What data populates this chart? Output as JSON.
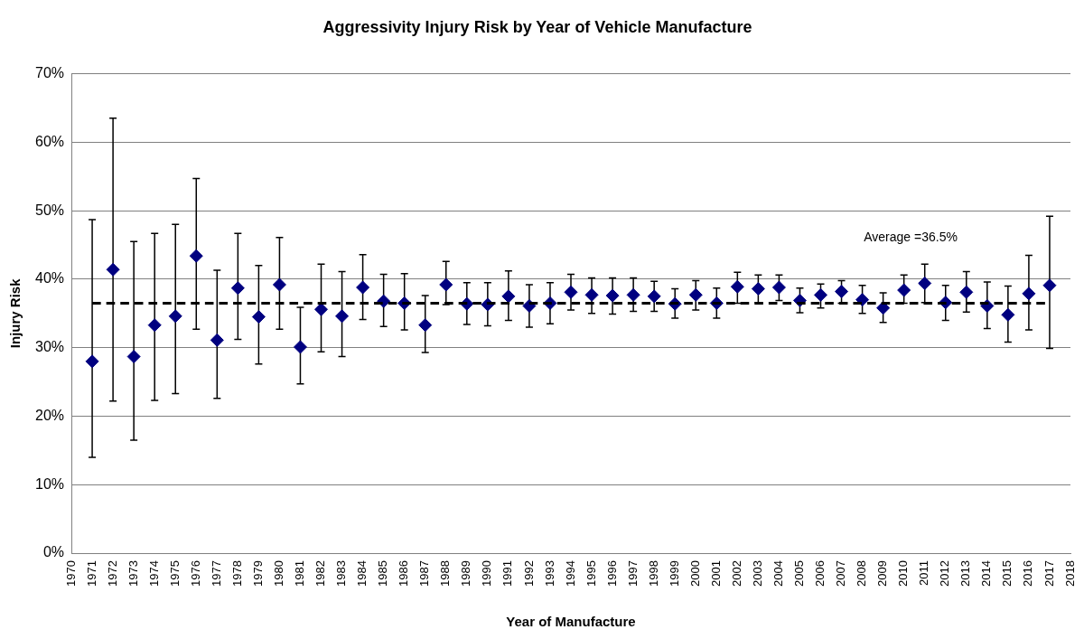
{
  "chart_data": {
    "type": "scatter",
    "title": "Aggressivity Injury Risk by Year of Vehicle Manufacture",
    "xlabel": "Year of Manufacture",
    "ylabel": "Injury Risk",
    "x": [
      1971,
      1972,
      1973,
      1974,
      1975,
      1976,
      1977,
      1978,
      1979,
      1980,
      1981,
      1982,
      1983,
      1984,
      1985,
      1986,
      1987,
      1988,
      1989,
      1990,
      1991,
      1992,
      1993,
      1994,
      1995,
      1996,
      1997,
      1998,
      1999,
      2000,
      2001,
      2002,
      2003,
      2004,
      2005,
      2006,
      2007,
      2008,
      2009,
      2010,
      2011,
      2012,
      2013,
      2014,
      2015,
      2016,
      2017
    ],
    "series": [
      {
        "color": "#000080",
        "values": [
          28.0,
          41.4,
          28.7,
          33.3,
          34.6,
          43.4,
          31.1,
          38.7,
          34.5,
          39.2,
          30.1,
          35.6,
          34.6,
          38.8,
          36.8,
          36.5,
          33.3,
          39.2,
          36.4,
          36.3,
          37.5,
          36.1,
          36.5,
          38.1,
          37.7,
          37.6,
          37.7,
          37.5,
          36.4,
          37.7,
          36.5,
          38.9,
          38.6,
          38.8,
          36.9,
          37.7,
          38.2,
          37.0,
          35.8,
          38.4,
          39.4,
          36.6,
          38.1,
          36.1,
          34.8,
          37.9,
          39.1
        ],
        "errors": [
          [
            14.0,
            48.7
          ],
          [
            22.2,
            63.5
          ],
          [
            16.5,
            45.5
          ],
          [
            22.3,
            46.7
          ],
          [
            23.3,
            48.0
          ],
          [
            32.7,
            54.7
          ],
          [
            22.6,
            41.3
          ],
          [
            31.2,
            46.7
          ],
          [
            27.6,
            42.0
          ],
          [
            32.7,
            46.1
          ],
          [
            24.7,
            35.9
          ],
          [
            29.4,
            42.2
          ],
          [
            28.7,
            41.1
          ],
          [
            34.1,
            43.6
          ],
          [
            33.1,
            40.7
          ],
          [
            32.6,
            40.8
          ],
          [
            29.3,
            37.6
          ],
          [
            36.3,
            42.6
          ],
          [
            33.4,
            39.5
          ],
          [
            33.2,
            39.5
          ],
          [
            34.0,
            41.2
          ],
          [
            33.0,
            39.2
          ],
          [
            33.5,
            39.5
          ],
          [
            35.5,
            40.7
          ],
          [
            35.0,
            40.2
          ],
          [
            34.9,
            40.2
          ],
          [
            35.3,
            40.2
          ],
          [
            35.3,
            39.7
          ],
          [
            34.3,
            38.6
          ],
          [
            35.5,
            39.8
          ],
          [
            34.3,
            38.7
          ],
          [
            36.5,
            41.0
          ],
          [
            36.6,
            40.6
          ],
          [
            36.9,
            40.6
          ],
          [
            35.1,
            38.7
          ],
          [
            35.8,
            39.3
          ],
          [
            36.5,
            39.8
          ],
          [
            35.0,
            39.1
          ],
          [
            33.7,
            38.0
          ],
          [
            36.5,
            40.6
          ],
          [
            36.6,
            42.2
          ],
          [
            34.0,
            39.1
          ],
          [
            35.2,
            41.1
          ],
          [
            32.8,
            39.6
          ],
          [
            30.8,
            39.0
          ],
          [
            32.6,
            43.5
          ],
          [
            29.9,
            49.2
          ]
        ]
      }
    ],
    "xlim": [
      1970,
      2018
    ],
    "xticks": [
      1970,
      1971,
      1972,
      1973,
      1974,
      1975,
      1976,
      1977,
      1978,
      1979,
      1980,
      1981,
      1982,
      1983,
      1984,
      1985,
      1986,
      1987,
      1988,
      1989,
      1990,
      1991,
      1992,
      1993,
      1994,
      1995,
      1996,
      1997,
      1998,
      1999,
      2000,
      2001,
      2002,
      2003,
      2004,
      2005,
      2006,
      2007,
      2008,
      2009,
      2010,
      2011,
      2012,
      2013,
      2014,
      2015,
      2016,
      2017,
      2018
    ],
    "ylim": [
      0,
      70
    ],
    "yticks": [
      {
        "value": 0,
        "label": "0%"
      },
      {
        "value": 10,
        "label": "10%"
      },
      {
        "value": 20,
        "label": "20%"
      },
      {
        "value": 30,
        "label": "30%"
      },
      {
        "value": 40,
        "label": "40%"
      },
      {
        "value": 50,
        "label": "50%"
      },
      {
        "value": 60,
        "label": "60%"
      },
      {
        "value": 70,
        "label": "70%"
      }
    ],
    "ref_lines": [
      {
        "axis": "y",
        "value": 36.5,
        "label": "Average =36.5%",
        "color": "#000000",
        "line_style": "dashed"
      }
    ],
    "grid": "y",
    "legend": false,
    "marker": "diamond"
  }
}
